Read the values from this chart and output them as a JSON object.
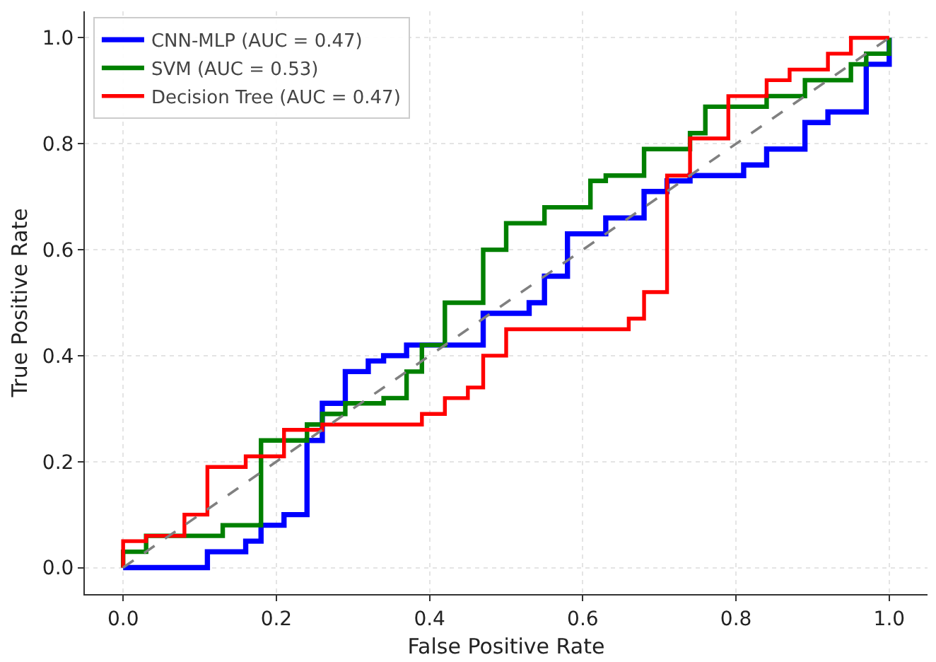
{
  "chart_data": {
    "type": "line",
    "xlabel": "False Positive Rate",
    "ylabel": "True Positive Rate",
    "xlim": [
      -0.05,
      1.05
    ],
    "ylim": [
      -0.05,
      1.05
    ],
    "xticks": [
      {
        "value": 0,
        "label": "0.0"
      },
      {
        "value": 0.2,
        "label": "0.2"
      },
      {
        "value": 0.4,
        "label": "0.4"
      },
      {
        "value": 0.6,
        "label": "0.6"
      },
      {
        "value": 0.8,
        "label": "0.8"
      },
      {
        "value": 1,
        "label": "1.0"
      }
    ],
    "yticks": [
      {
        "value": 0,
        "label": "0.0"
      },
      {
        "value": 0.2,
        "label": "0.2"
      },
      {
        "value": 0.4,
        "label": "0.4"
      },
      {
        "value": 0.6,
        "label": "0.6"
      },
      {
        "value": 0.8,
        "label": "0.8"
      },
      {
        "value": 1,
        "label": "1.0"
      }
    ],
    "grid": true,
    "legend": "top left",
    "marker": "none",
    "line_style": "solid",
    "series": [
      {
        "name": "CNN-MLP (AUC = 0.47)",
        "color": "#0000ff",
        "x": [
          0,
          0.11,
          0.11,
          0.16,
          0.16,
          0.18,
          0.18,
          0.21,
          0.21,
          0.24,
          0.24,
          0.26,
          0.26,
          0.29,
          0.29,
          0.32,
          0.32,
          0.34,
          0.34,
          0.37,
          0.37,
          0.47,
          0.47,
          0.53,
          0.53,
          0.55,
          0.55,
          0.58,
          0.58,
          0.63,
          0.63,
          0.68,
          0.68,
          0.71,
          0.71,
          0.74,
          0.74,
          0.81,
          0.81,
          0.84,
          0.84,
          0.89,
          0.89,
          0.92,
          0.92,
          0.97,
          0.97,
          1,
          1
        ],
        "values": [
          0,
          0,
          0.03,
          0.03,
          0.05,
          0.05,
          0.08,
          0.08,
          0.1,
          0.1,
          0.24,
          0.24,
          0.31,
          0.31,
          0.37,
          0.37,
          0.39,
          0.39,
          0.4,
          0.4,
          0.42,
          0.42,
          0.48,
          0.48,
          0.5,
          0.5,
          0.55,
          0.55,
          0.63,
          0.63,
          0.66,
          0.66,
          0.71,
          0.71,
          0.73,
          0.73,
          0.74,
          0.74,
          0.76,
          0.76,
          0.79,
          0.79,
          0.84,
          0.84,
          0.86,
          0.86,
          0.95,
          0.95,
          1
        ]
      },
      {
        "name": "SVM (AUC = 0.53)",
        "color": "#008000",
        "x": [
          0,
          0,
          0.03,
          0.03,
          0.13,
          0.13,
          0.18,
          0.18,
          0.24,
          0.24,
          0.26,
          0.26,
          0.29,
          0.29,
          0.34,
          0.34,
          0.37,
          0.37,
          0.39,
          0.39,
          0.42,
          0.42,
          0.47,
          0.47,
          0.5,
          0.5,
          0.55,
          0.55,
          0.61,
          0.61,
          0.63,
          0.63,
          0.68,
          0.68,
          0.74,
          0.74,
          0.76,
          0.76,
          0.84,
          0.84,
          0.89,
          0.89,
          0.95,
          0.95,
          0.97,
          0.97,
          1,
          1
        ],
        "values": [
          0,
          0.03,
          0.03,
          0.06,
          0.06,
          0.08,
          0.08,
          0.24,
          0.24,
          0.27,
          0.27,
          0.29,
          0.29,
          0.31,
          0.31,
          0.32,
          0.32,
          0.37,
          0.37,
          0.42,
          0.42,
          0.5,
          0.5,
          0.6,
          0.6,
          0.65,
          0.65,
          0.68,
          0.68,
          0.73,
          0.73,
          0.74,
          0.74,
          0.79,
          0.79,
          0.82,
          0.82,
          0.87,
          0.87,
          0.89,
          0.89,
          0.92,
          0.92,
          0.95,
          0.95,
          0.97,
          0.97,
          1
        ]
      },
      {
        "name": "Decision Tree (AUC = 0.47)",
        "color": "#ff0000",
        "x": [
          0,
          0,
          0.03,
          0.03,
          0.08,
          0.08,
          0.11,
          0.11,
          0.16,
          0.16,
          0.21,
          0.21,
          0.26,
          0.26,
          0.39,
          0.39,
          0.42,
          0.42,
          0.45,
          0.45,
          0.47,
          0.47,
          0.5,
          0.5,
          0.66,
          0.66,
          0.68,
          0.68,
          0.71,
          0.71,
          0.74,
          0.74,
          0.79,
          0.79,
          0.84,
          0.84,
          0.87,
          0.87,
          0.92,
          0.92,
          0.95,
          0.95,
          1
        ],
        "values": [
          0,
          0.05,
          0.05,
          0.06,
          0.06,
          0.1,
          0.1,
          0.19,
          0.19,
          0.21,
          0.21,
          0.26,
          0.26,
          0.27,
          0.27,
          0.29,
          0.29,
          0.32,
          0.32,
          0.34,
          0.34,
          0.4,
          0.4,
          0.45,
          0.45,
          0.47,
          0.47,
          0.52,
          0.52,
          0.74,
          0.74,
          0.81,
          0.81,
          0.89,
          0.89,
          0.92,
          0.92,
          0.94,
          0.94,
          0.97,
          0.97,
          1,
          1
        ]
      },
      {
        "color": "#808080",
        "line_style": "dashed",
        "x": [
          0,
          1
        ],
        "values": [
          0,
          1
        ]
      }
    ]
  }
}
